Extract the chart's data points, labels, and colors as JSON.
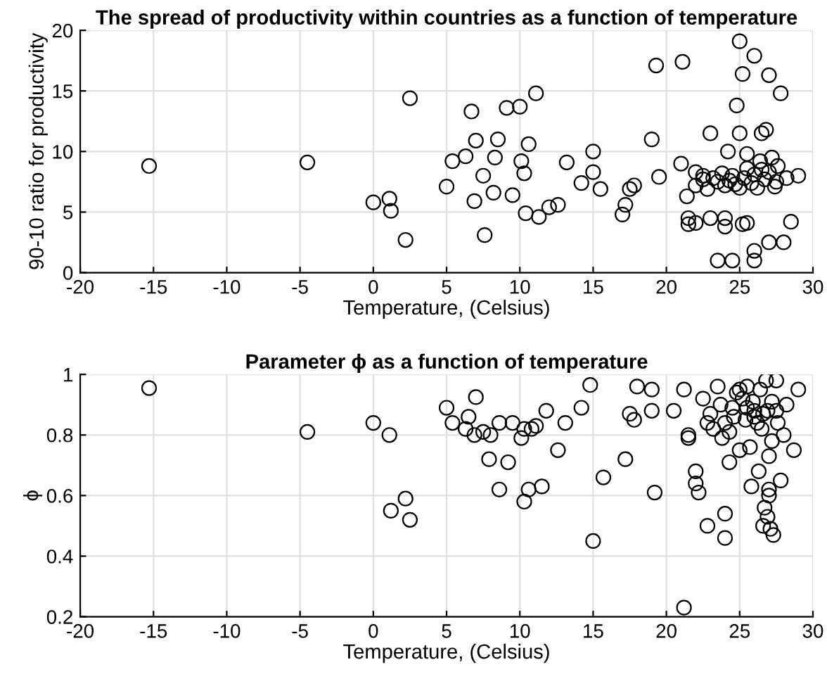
{
  "chart_data": [
    {
      "type": "scatter",
      "title": "The spread of productivity within countries as a function of temperature",
      "xlabel": "Temperature, (Celsius)",
      "ylabel": "90-10 ratio for productivity",
      "xlim": [
        -20,
        30
      ],
      "ylim": [
        0,
        20
      ],
      "xticks": [
        -20,
        -15,
        -10,
        -5,
        0,
        5,
        10,
        15,
        20,
        25,
        30
      ],
      "yticks": [
        0,
        5,
        10,
        15,
        20
      ],
      "grid": true,
      "marker": "circle",
      "series": [
        {
          "color": "#000000",
          "x": [
            -15.3,
            -4.5,
            0,
            1.1,
            1.2,
            2.2,
            2.5,
            5,
            5.4,
            6.3,
            6.7,
            7,
            6.9,
            7.5,
            7.6,
            8.2,
            8.3,
            8.5,
            9.1,
            9.5,
            10,
            10.1,
            10.3,
            10.4,
            10.6,
            11.1,
            11.3,
            12.0,
            12.6,
            13.2,
            14.2,
            15,
            15,
            15.5,
            17,
            17.2,
            17.5,
            17.8,
            19,
            19.3,
            19.5,
            21,
            21.1,
            21.5,
            21.5,
            22,
            22,
            22.5,
            22.8,
            23,
            23,
            23.5,
            23.5,
            24,
            24,
            24,
            24.5,
            24.5,
            24.8,
            25,
            25,
            25,
            25.2,
            25.2,
            25.5,
            26,
            26,
            26,
            26.5,
            26.5,
            27,
            27,
            27.5,
            27.8,
            28,
            28.5,
            29,
            22.5,
            23.2,
            23.8,
            24.3,
            24.7,
            25.3,
            25.5,
            25.8,
            26,
            26.2,
            26.4,
            26.7,
            27,
            27.2,
            27.4,
            27.6,
            28.2,
            25.5,
            24.2,
            26.8,
            21.4,
            22
          ],
          "values": [
            8.8,
            9.1,
            5.8,
            6.1,
            5.1,
            2.7,
            14.4,
            7.1,
            9.2,
            9.6,
            13.3,
            10.9,
            5.9,
            8.0,
            3.1,
            6.6,
            9.5,
            11,
            13.6,
            6.4,
            13.7,
            9.2,
            8.2,
            4.9,
            10.6,
            14.8,
            4.6,
            5.4,
            5.6,
            9.1,
            7.4,
            8.3,
            10,
            6.9,
            4.8,
            5.6,
            6.9,
            7.2,
            11,
            17.1,
            7.9,
            9,
            17.4,
            4.5,
            4.0,
            4.1,
            8.3,
            7.7,
            6.9,
            11.5,
            4.5,
            7.5,
            1.0,
            3.8,
            4.5,
            7.2,
            1.0,
            8.0,
            13.8,
            19.1,
            11.5,
            7.0,
            16.4,
            4.0,
            4.1,
            1,
            1.8,
            17.9,
            11.5,
            8.5,
            16.3,
            2.5,
            7.5,
            14.8,
            2.5,
            4.2,
            8.0,
            8.0,
            7.8,
            8.2,
            7.6,
            7.3,
            7.8,
            8.6,
            7.4,
            8.1,
            7.0,
            9.2,
            7.7,
            8.3,
            9.5,
            7.1,
            8.8,
            7.8,
            9.8,
            10.0,
            11.8,
            6.3,
            7.2
          ]
        }
      ]
    },
    {
      "type": "scatter",
      "title": "Parameter ϕ as a function of temperature",
      "xlabel": "Temperature, (Celsius)",
      "ylabel": "ϕ",
      "xlim": [
        -20,
        30
      ],
      "ylim": [
        0.2,
        1
      ],
      "xticks": [
        -20,
        -15,
        -10,
        -5,
        0,
        5,
        10,
        15,
        20,
        25,
        30
      ],
      "yticks": [
        0.2,
        0.4,
        0.6,
        0.8,
        1
      ],
      "grid": true,
      "marker": "circle",
      "series": [
        {
          "color": "#000000",
          "x": [
            -15.3,
            -4.5,
            0,
            1.1,
            1.2,
            2.2,
            2.5,
            5,
            5.4,
            6.3,
            6.5,
            7,
            6.9,
            7.5,
            8,
            7.9,
            8.6,
            8.6,
            9.2,
            9.5,
            10.1,
            10.3,
            10.3,
            10.6,
            10.8,
            11.1,
            11.5,
            11.8,
            12.6,
            13.1,
            14.2,
            14.8,
            15,
            15.7,
            17.2,
            17.5,
            18,
            17.8,
            19,
            19.2,
            19,
            20.5,
            21.2,
            21.2,
            21.5,
            21.5,
            22,
            22,
            22.2,
            22.5,
            22.8,
            23,
            23.2,
            23.5,
            23.8,
            24,
            24,
            24.3,
            24.5,
            24.3,
            25,
            25,
            25.5,
            25.5,
            25.7,
            25.8,
            26,
            26,
            26.2,
            26.3,
            26.5,
            26.6,
            26.8,
            27,
            27,
            27,
            27.2,
            27.5,
            27.5,
            27.8,
            28,
            28.2,
            28.7,
            29,
            24,
            24.8,
            25.2,
            25.4,
            25.9,
            26.4,
            26.6,
            26.9,
            27.2,
            27.6,
            23.7,
            24.6,
            22.8,
            27.3,
            27.1,
            26.7,
            26.9
          ],
          "values": [
            0.955,
            0.81,
            0.84,
            0.8,
            0.55,
            0.59,
            0.52,
            0.89,
            0.84,
            0.82,
            0.86,
            0.925,
            0.8,
            0.81,
            0.8,
            0.72,
            0.62,
            0.84,
            0.71,
            0.84,
            0.79,
            0.58,
            0.82,
            0.62,
            0.82,
            0.83,
            0.63,
            0.88,
            0.75,
            0.84,
            0.89,
            0.965,
            0.45,
            0.66,
            0.72,
            0.87,
            0.96,
            0.85,
            0.95,
            0.61,
            0.88,
            0.88,
            0.23,
            0.95,
            0.8,
            0.79,
            0.68,
            0.64,
            0.61,
            0.92,
            0.5,
            0.87,
            0.82,
            0.96,
            0.79,
            0.54,
            0.46,
            0.81,
            0.89,
            0.71,
            0.95,
            0.75,
            0.96,
            0.89,
            0.76,
            0.63,
            0.88,
            0.86,
            0.84,
            0.68,
            0.82,
            0.5,
            0.98,
            0.62,
            0.6,
            0.73,
            0.78,
            0.88,
            0.98,
            0.65,
            0.8,
            0.9,
            0.75,
            0.95,
            0.84,
            0.94,
            0.92,
            0.85,
            0.91,
            0.95,
            0.87,
            0.88,
            0.91,
            0.84,
            0.9,
            0.86,
            0.84,
            0.47,
            0.49,
            0.56,
            0.53
          ]
        }
      ]
    }
  ]
}
